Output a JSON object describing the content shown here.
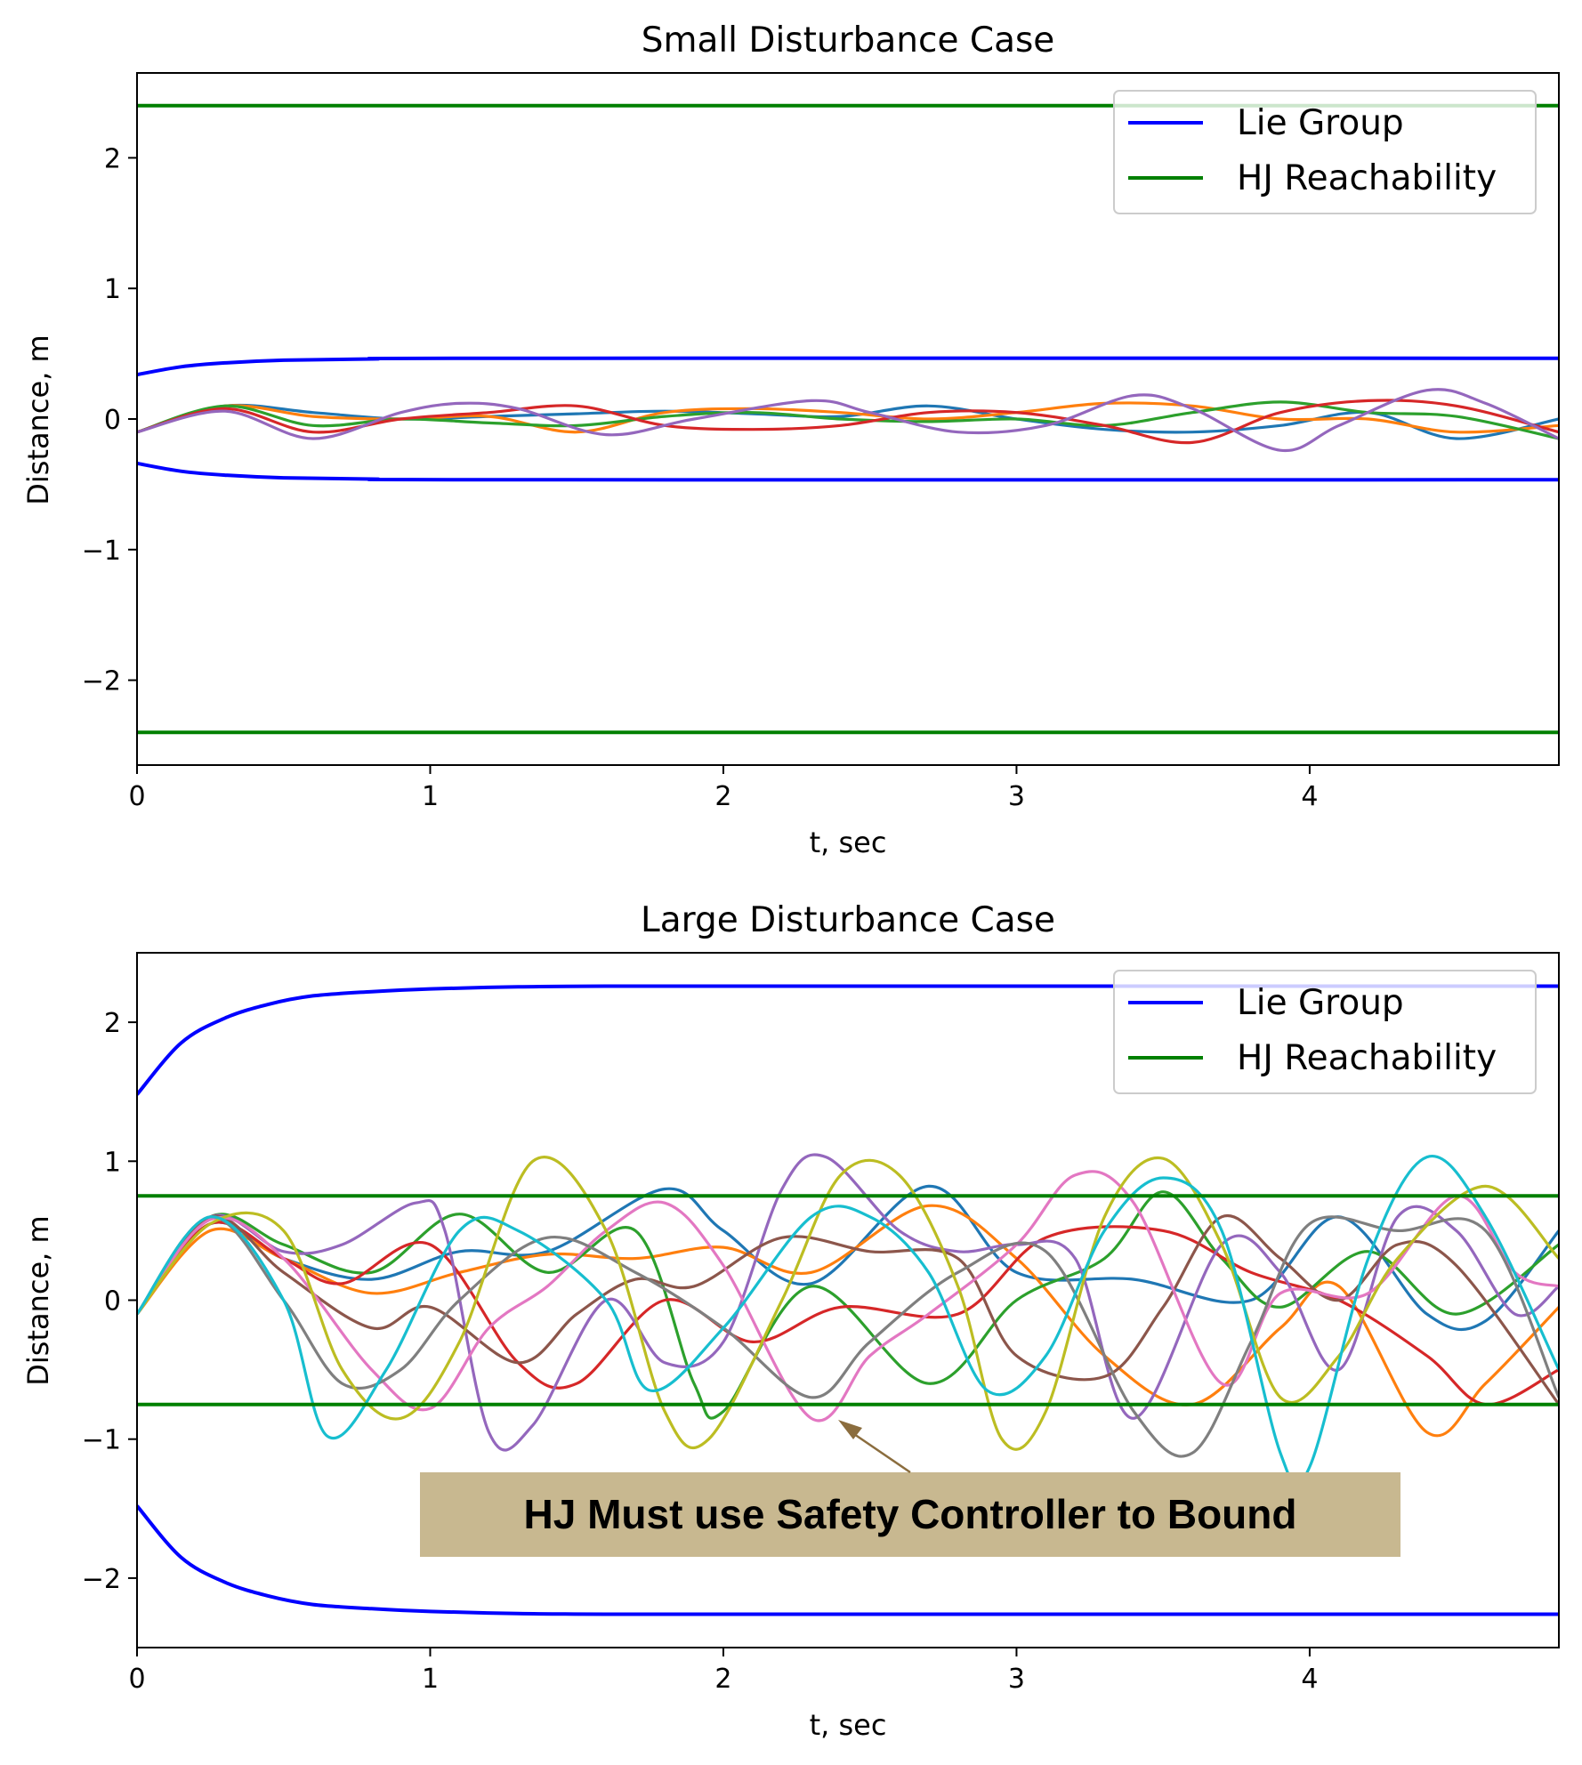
{
  "chart_data": [
    {
      "type": "line",
      "title": "Small Disturbance Case",
      "xlabel": "t, sec",
      "ylabel": "Distance, m",
      "xlim": [
        0,
        4.85
      ],
      "ylim": [
        -2.65,
        2.65
      ],
      "xticks": [
        0,
        1,
        2,
        3,
        4
      ],
      "xtick_labels": [
        "0",
        "1",
        "2",
        "3",
        "4"
      ],
      "yticks": [
        -2,
        -1,
        0,
        1,
        2
      ],
      "ytick_labels": [
        "−2",
        "−1",
        "0",
        "1",
        "2"
      ],
      "grid": false,
      "legend": {
        "position": "top-right",
        "entries": [
          {
            "label": "Lie Group",
            "color": "#0000ff"
          },
          {
            "label": "HJ Reachability",
            "color": "#008000"
          }
        ]
      },
      "bounds": [
        {
          "group": "Lie Group",
          "color": "#0000ff",
          "x": [
            0,
            0.15,
            0.3,
            0.5,
            0.8,
            1.2,
            4.85
          ],
          "y": [
            0.34,
            0.4,
            0.43,
            0.45,
            0.46,
            0.465,
            0.465
          ]
        },
        {
          "group": "Lie Group",
          "color": "#0000ff",
          "x": [
            0,
            0.15,
            0.3,
            0.5,
            0.8,
            1.2,
            4.85
          ],
          "y": [
            -0.34,
            -0.4,
            -0.43,
            -0.45,
            -0.46,
            -0.465,
            -0.465
          ]
        },
        {
          "group": "HJ Reachability",
          "color": "#008000",
          "x": [
            0,
            4.85
          ],
          "y": [
            2.4,
            2.4
          ]
        },
        {
          "group": "HJ Reachability",
          "color": "#008000",
          "x": [
            0,
            4.85
          ],
          "y": [
            -2.4,
            -2.4
          ]
        }
      ],
      "trajectories": [
        {
          "color": "#1f77b4",
          "x": [
            0,
            0.3,
            0.6,
            0.9,
            1.2,
            1.5,
            1.8,
            2.1,
            2.4,
            2.7,
            3.0,
            3.3,
            3.6,
            3.9,
            4.2,
            4.5,
            4.85
          ],
          "y": [
            -0.1,
            0.1,
            0.05,
            0.0,
            0.02,
            0.04,
            0.06,
            0.04,
            0.02,
            0.1,
            0.0,
            -0.08,
            -0.1,
            -0.05,
            0.05,
            -0.15,
            0.0
          ]
        },
        {
          "color": "#ff7f0e",
          "x": [
            0,
            0.3,
            0.6,
            0.9,
            1.2,
            1.5,
            1.8,
            2.1,
            2.4,
            2.7,
            3.0,
            3.3,
            3.6,
            3.9,
            4.2,
            4.5,
            4.85
          ],
          "y": [
            -0.1,
            0.1,
            0.02,
            0.0,
            0.02,
            -0.1,
            0.05,
            0.08,
            0.05,
            0.0,
            0.05,
            0.12,
            0.1,
            0.0,
            0.0,
            -0.1,
            -0.05
          ]
        },
        {
          "color": "#2ca02c",
          "x": [
            0,
            0.3,
            0.6,
            0.9,
            1.2,
            1.5,
            1.8,
            2.1,
            2.4,
            2.7,
            3.0,
            3.3,
            3.6,
            3.9,
            4.2,
            4.5,
            4.85
          ],
          "y": [
            -0.1,
            0.1,
            -0.05,
            0.0,
            -0.03,
            -0.05,
            0.02,
            0.05,
            0.0,
            -0.02,
            0.0,
            -0.05,
            0.05,
            0.13,
            0.05,
            0.02,
            -0.15
          ]
        },
        {
          "color": "#d62728",
          "x": [
            0,
            0.3,
            0.6,
            0.9,
            1.2,
            1.5,
            1.8,
            2.1,
            2.4,
            2.7,
            3.0,
            3.3,
            3.6,
            3.9,
            4.2,
            4.5,
            4.85
          ],
          "y": [
            -0.1,
            0.08,
            -0.1,
            0.0,
            0.05,
            0.1,
            -0.05,
            -0.08,
            -0.05,
            0.05,
            0.05,
            -0.05,
            -0.18,
            0.05,
            0.14,
            0.1,
            -0.1
          ]
        },
        {
          "color": "#9467bd",
          "x": [
            0,
            0.3,
            0.6,
            0.9,
            1.1,
            1.3,
            1.6,
            1.9,
            2.3,
            2.5,
            2.8,
            3.1,
            3.4,
            3.6,
            3.9,
            4.1,
            4.4,
            4.6,
            4.85
          ],
          "y": [
            -0.1,
            0.06,
            -0.15,
            0.05,
            0.12,
            0.08,
            -0.12,
            0.0,
            0.14,
            0.05,
            -0.1,
            -0.05,
            0.18,
            0.08,
            -0.24,
            -0.05,
            0.22,
            0.12,
            -0.15
          ]
        }
      ]
    },
    {
      "type": "line",
      "title": "Large Disturbance Case",
      "xlabel": "t, sec",
      "ylabel": "Distance, m",
      "xlim": [
        0,
        4.85
      ],
      "ylim": [
        -2.5,
        2.5
      ],
      "xticks": [
        0,
        1,
        2,
        3,
        4
      ],
      "xtick_labels": [
        "0",
        "1",
        "2",
        "3",
        "4"
      ],
      "yticks": [
        -2,
        -1,
        0,
        1,
        2
      ],
      "ytick_labels": [
        "−2",
        "−1",
        "0",
        "1",
        "2"
      ],
      "grid": false,
      "legend": {
        "position": "top-right",
        "entries": [
          {
            "label": "Lie Group",
            "color": "#0000ff"
          },
          {
            "label": "HJ Reachability",
            "color": "#008000"
          }
        ]
      },
      "annotation": {
        "text": "HJ Must use Safety Controller to Bound",
        "arrow_target": {
          "x": 2.4,
          "y": -0.85
        },
        "box_color": "#c8b890",
        "arrow_color": "#8b6d3e"
      },
      "bounds": [
        {
          "group": "Lie Group",
          "color": "#0000ff",
          "x": [
            0,
            0.15,
            0.3,
            0.45,
            0.6,
            0.8,
            1.0,
            1.3,
            1.6,
            2.0,
            4.85
          ],
          "y": [
            1.48,
            1.85,
            2.03,
            2.13,
            2.19,
            2.22,
            2.24,
            2.255,
            2.26,
            2.26,
            2.26
          ]
        },
        {
          "group": "Lie Group",
          "color": "#0000ff",
          "x": [
            0,
            0.15,
            0.3,
            0.45,
            0.6,
            0.8,
            1.0,
            1.3,
            1.6,
            2.0,
            4.85
          ],
          "y": [
            -1.48,
            -1.85,
            -2.03,
            -2.13,
            -2.19,
            -2.22,
            -2.24,
            -2.255,
            -2.26,
            -2.26,
            -2.26
          ]
        },
        {
          "group": "HJ Reachability",
          "color": "#008000",
          "x": [
            0,
            4.85
          ],
          "y": [
            0.75,
            0.75
          ]
        },
        {
          "group": "HJ Reachability",
          "color": "#008000",
          "x": [
            0,
            4.85
          ],
          "y": [
            -0.75,
            -0.75
          ]
        }
      ],
      "trajectories": [
        {
          "color": "#1f77b4",
          "x": [
            0,
            0.25,
            0.5,
            0.8,
            1.1,
            1.4,
            1.8,
            2.0,
            2.3,
            2.7,
            3.0,
            3.4,
            3.8,
            4.1,
            4.4,
            4.6,
            4.85
          ],
          "y": [
            -0.1,
            0.55,
            0.3,
            0.15,
            0.35,
            0.35,
            0.8,
            0.5,
            0.12,
            0.82,
            0.2,
            0.15,
            0.0,
            0.6,
            -0.1,
            -0.15,
            0.5
          ]
        },
        {
          "color": "#ff7f0e",
          "x": [
            0,
            0.25,
            0.5,
            0.8,
            1.1,
            1.4,
            1.7,
            2.0,
            2.3,
            2.7,
            3.0,
            3.3,
            3.6,
            3.9,
            4.1,
            4.4,
            4.6,
            4.85
          ],
          "y": [
            -0.1,
            0.5,
            0.3,
            0.05,
            0.2,
            0.33,
            0.3,
            0.38,
            0.2,
            0.68,
            0.3,
            -0.4,
            -0.75,
            -0.2,
            0.1,
            -0.95,
            -0.6,
            -0.05
          ]
        },
        {
          "color": "#2ca02c",
          "x": [
            0,
            0.25,
            0.5,
            0.8,
            1.1,
            1.4,
            1.7,
            1.9,
            2.0,
            2.3,
            2.7,
            3.0,
            3.3,
            3.5,
            3.7,
            3.9,
            4.2,
            4.5,
            4.85
          ],
          "y": [
            -0.1,
            0.6,
            0.4,
            0.2,
            0.62,
            0.2,
            0.5,
            -0.6,
            -0.8,
            0.1,
            -0.6,
            0.0,
            0.3,
            0.78,
            0.3,
            -0.05,
            0.35,
            -0.1,
            0.4
          ]
        },
        {
          "color": "#d62728",
          "x": [
            0,
            0.25,
            0.5,
            0.7,
            1.0,
            1.3,
            1.5,
            1.8,
            2.1,
            2.4,
            2.8,
            3.1,
            3.5,
            3.8,
            4.1,
            4.4,
            4.6,
            4.85
          ],
          "y": [
            -0.1,
            0.55,
            0.3,
            0.12,
            0.4,
            -0.45,
            -0.6,
            0.0,
            -0.3,
            -0.05,
            -0.1,
            0.45,
            0.5,
            0.2,
            0.0,
            -0.4,
            -0.75,
            -0.5
          ]
        },
        {
          "color": "#9467bd",
          "x": [
            0,
            0.25,
            0.5,
            0.7,
            0.95,
            1.05,
            1.2,
            1.35,
            1.6,
            1.8,
            2.0,
            2.2,
            2.35,
            2.6,
            2.8,
            3.0,
            3.2,
            3.4,
            3.7,
            3.9,
            4.1,
            4.3,
            4.5,
            4.7,
            4.85
          ],
          "y": [
            -0.1,
            0.6,
            0.35,
            0.4,
            0.7,
            0.5,
            -0.95,
            -0.9,
            0.0,
            -0.45,
            -0.3,
            0.8,
            1.03,
            0.5,
            0.35,
            0.4,
            0.3,
            -0.85,
            0.4,
            0.2,
            -0.5,
            0.6,
            0.5,
            -0.1,
            0.1
          ]
        },
        {
          "color": "#8c564b",
          "x": [
            0,
            0.25,
            0.5,
            0.8,
            1.0,
            1.3,
            1.5,
            1.7,
            1.9,
            2.2,
            2.5,
            2.8,
            3.0,
            3.3,
            3.5,
            3.7,
            3.9,
            4.1,
            4.3,
            4.5,
            4.85
          ],
          "y": [
            -0.1,
            0.6,
            0.2,
            -0.2,
            -0.05,
            -0.45,
            -0.1,
            0.15,
            0.1,
            0.45,
            0.35,
            0.3,
            -0.4,
            -0.55,
            -0.05,
            0.6,
            0.3,
            0.0,
            0.4,
            0.25,
            -0.75
          ]
        },
        {
          "color": "#e377c2",
          "x": [
            0,
            0.25,
            0.5,
            0.8,
            1.0,
            1.2,
            1.4,
            1.6,
            1.8,
            2.0,
            2.3,
            2.5,
            2.7,
            3.0,
            3.2,
            3.4,
            3.7,
            3.9,
            4.2,
            4.5,
            4.7,
            4.85
          ],
          "y": [
            -0.1,
            0.58,
            0.3,
            -0.5,
            -0.78,
            -0.2,
            0.1,
            0.5,
            0.7,
            0.25,
            -0.85,
            -0.4,
            -0.1,
            0.4,
            0.9,
            0.7,
            -0.6,
            0.05,
            0.05,
            0.75,
            0.2,
            0.1
          ]
        },
        {
          "color": "#7f7f7f",
          "x": [
            0,
            0.25,
            0.5,
            0.7,
            0.9,
            1.1,
            1.4,
            1.7,
            2.0,
            2.3,
            2.5,
            2.8,
            3.1,
            3.4,
            3.6,
            3.8,
            4.0,
            4.3,
            4.6,
            4.85
          ],
          "y": [
            -0.1,
            0.6,
            0.0,
            -0.6,
            -0.5,
            0.0,
            0.45,
            0.2,
            -0.2,
            -0.7,
            -0.3,
            0.2,
            0.35,
            -0.8,
            -1.1,
            -0.3,
            0.55,
            0.5,
            0.5,
            -0.7
          ]
        },
        {
          "color": "#bcbd22",
          "x": [
            0,
            0.25,
            0.5,
            0.7,
            0.9,
            1.1,
            1.35,
            1.6,
            1.8,
            1.95,
            2.2,
            2.4,
            2.6,
            2.8,
            2.95,
            3.1,
            3.3,
            3.5,
            3.7,
            3.9,
            4.1,
            4.3,
            4.6,
            4.85
          ],
          "y": [
            -0.1,
            0.55,
            0.5,
            -0.5,
            -0.85,
            -0.3,
            1.0,
            0.5,
            -0.8,
            -1.0,
            0.0,
            0.9,
            0.9,
            0.1,
            -1.0,
            -0.8,
            0.6,
            1.02,
            0.4,
            -0.7,
            -0.4,
            0.3,
            0.82,
            0.3
          ]
        },
        {
          "color": "#17becf",
          "x": [
            0,
            0.25,
            0.5,
            0.65,
            0.85,
            1.1,
            1.3,
            1.6,
            1.75,
            2.0,
            2.3,
            2.5,
            2.7,
            2.9,
            3.1,
            3.3,
            3.5,
            3.7,
            3.9,
            4.0,
            4.2,
            4.4,
            4.6,
            4.85
          ],
          "y": [
            -0.1,
            0.6,
            0.0,
            -0.98,
            -0.5,
            0.5,
            0.5,
            0.0,
            -0.65,
            -0.2,
            0.6,
            0.6,
            0.2,
            -0.65,
            -0.4,
            0.5,
            0.88,
            0.5,
            -1.1,
            -1.2,
            0.3,
            1.03,
            0.6,
            -0.5
          ]
        }
      ]
    }
  ]
}
